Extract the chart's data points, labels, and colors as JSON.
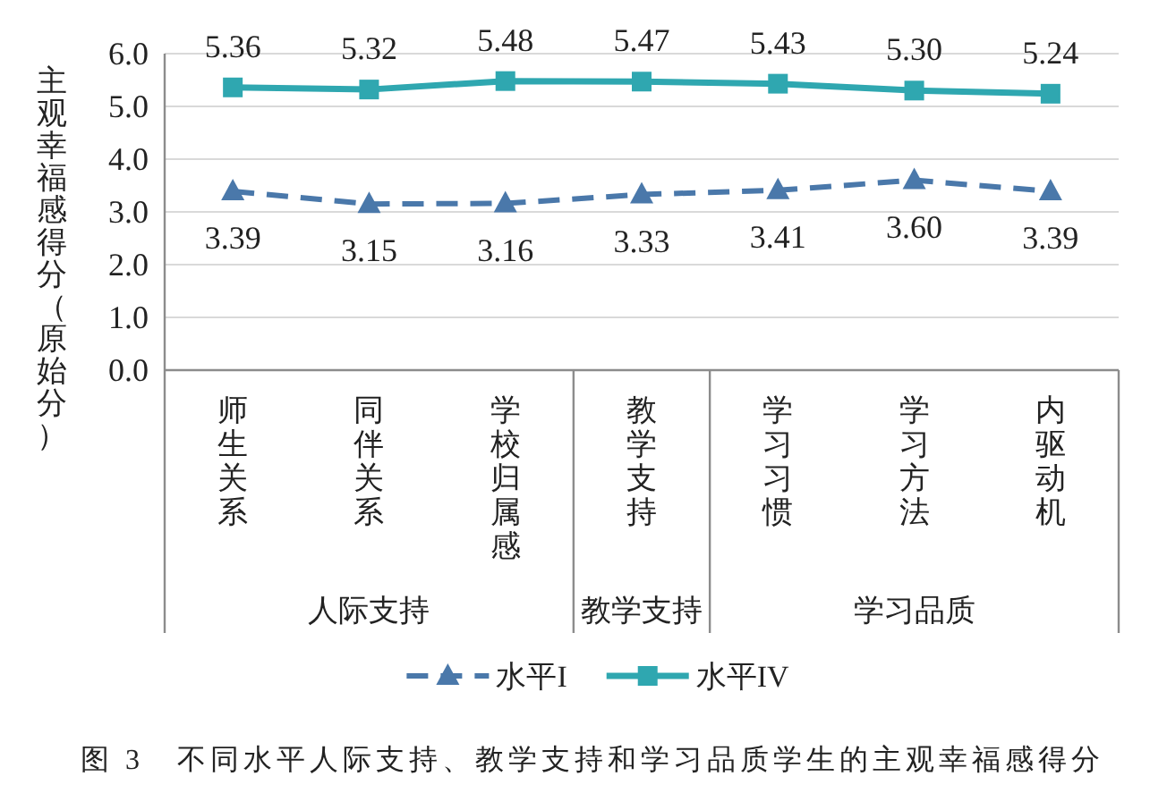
{
  "chart_data": {
    "type": "line",
    "title": "图 3　不同水平人际支持、教学支持和学习品质学生的主观幸福感得分",
    "ylabel": "主观幸福感得分（原始分）",
    "categories": [
      "师生关系",
      "同伴关系",
      "学校归属感",
      "教学支持",
      "学习习惯",
      "学习方法",
      "内驱动机"
    ],
    "series": [
      {
        "name": "水平I",
        "color": "#4a78aa",
        "marker": "triangle",
        "line_style": "dashed",
        "values": [
          3.39,
          3.15,
          3.16,
          3.33,
          3.41,
          3.6,
          3.39
        ],
        "value_labels": [
          "3.39",
          "3.15",
          "3.16",
          "3.33",
          "3.41",
          "3.60",
          "3.39"
        ]
      },
      {
        "name": "水平IV",
        "color": "#2fa7b0",
        "marker": "square",
        "line_style": "solid",
        "values": [
          5.36,
          5.32,
          5.48,
          5.47,
          5.43,
          5.3,
          5.24
        ],
        "value_labels": [
          "5.36",
          "5.32",
          "5.48",
          "5.47",
          "5.43",
          "5.30",
          "5.24"
        ]
      }
    ],
    "ylim": [
      0,
      6
    ],
    "yticks": [
      {
        "value": 0,
        "label": "0.0"
      },
      {
        "value": 1,
        "label": "1.0"
      },
      {
        "value": 2,
        "label": "2.0"
      },
      {
        "value": 3,
        "label": "3.0"
      },
      {
        "value": 4,
        "label": "4.0"
      },
      {
        "value": 5,
        "label": "5.0"
      },
      {
        "value": 6,
        "label": "6.0"
      }
    ],
    "grid": "y",
    "legend": "bottom",
    "annotations": [
      "人际支持",
      "教学支持",
      "学习品质"
    ]
  }
}
